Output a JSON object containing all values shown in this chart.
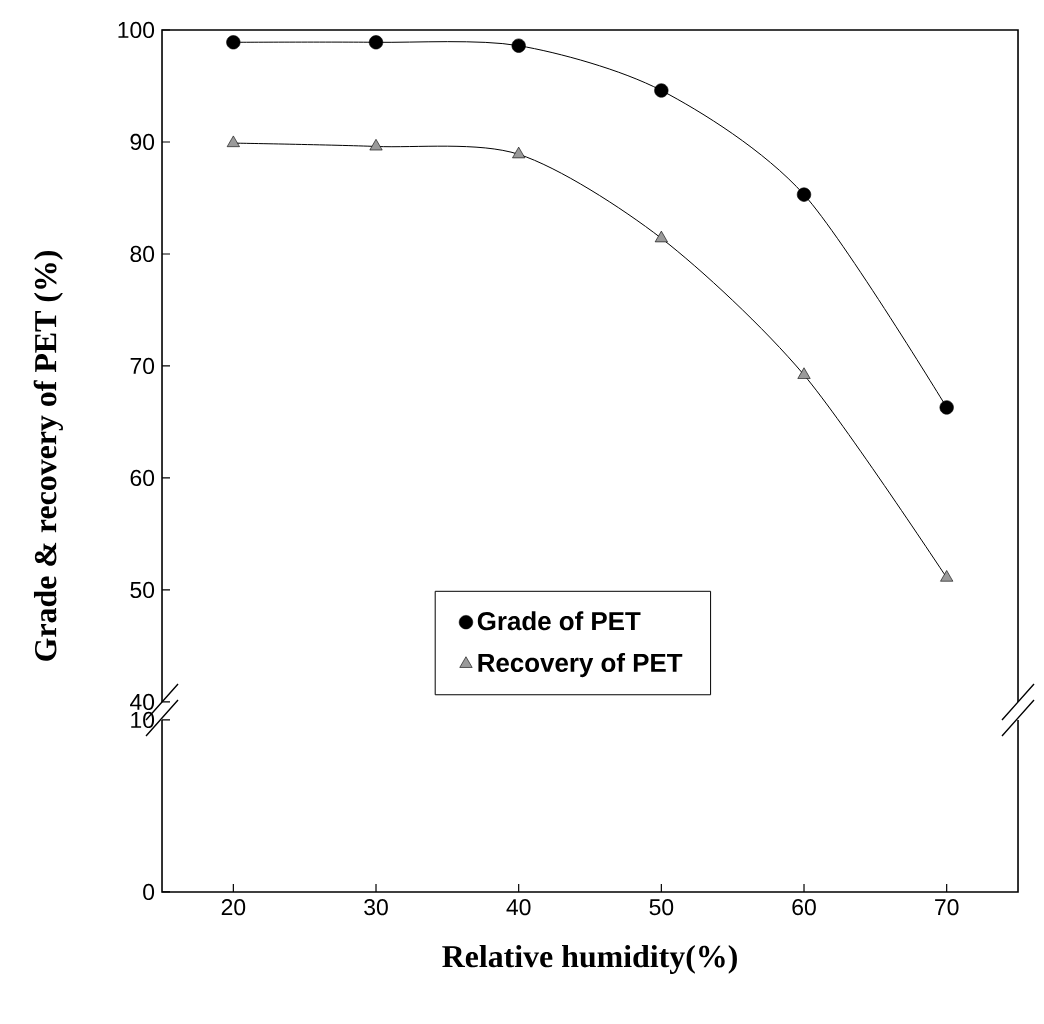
{
  "chart_data": [
    {
      "type": "line",
      "ylabel": "Grade & recovery of PET (%)",
      "xlim": [
        15,
        75
      ],
      "xticks": [
        20,
        30,
        40,
        50,
        60,
        70
      ],
      "ylim": [
        40,
        100
      ],
      "yticks": [
        40,
        50,
        60,
        70,
        80,
        90,
        100
      ],
      "tick_labels": "y",
      "legend": "bottom",
      "x": [
        20,
        30,
        40,
        50,
        60,
        70
      ],
      "series": [
        {
          "name": "Grade of  PET",
          "color": "#000000",
          "marker": "circle",
          "values": [
            98.9,
            98.9,
            98.6,
            94.6,
            85.3,
            66.3
          ]
        },
        {
          "name": "Recovery of  PET",
          "color": "#9a9a9a",
          "marker": "triangle",
          "values": [
            89.9,
            89.6,
            88.9,
            81.4,
            69.2,
            51.1
          ]
        }
      ]
    },
    {
      "type": "line",
      "xlabel": "Relative humidity(%)",
      "xlim": [
        15,
        75
      ],
      "xticks": [
        20,
        30,
        40,
        50,
        60,
        70
      ],
      "ylim": [
        0,
        10
      ],
      "yticks": [
        0,
        10
      ]
    }
  ]
}
